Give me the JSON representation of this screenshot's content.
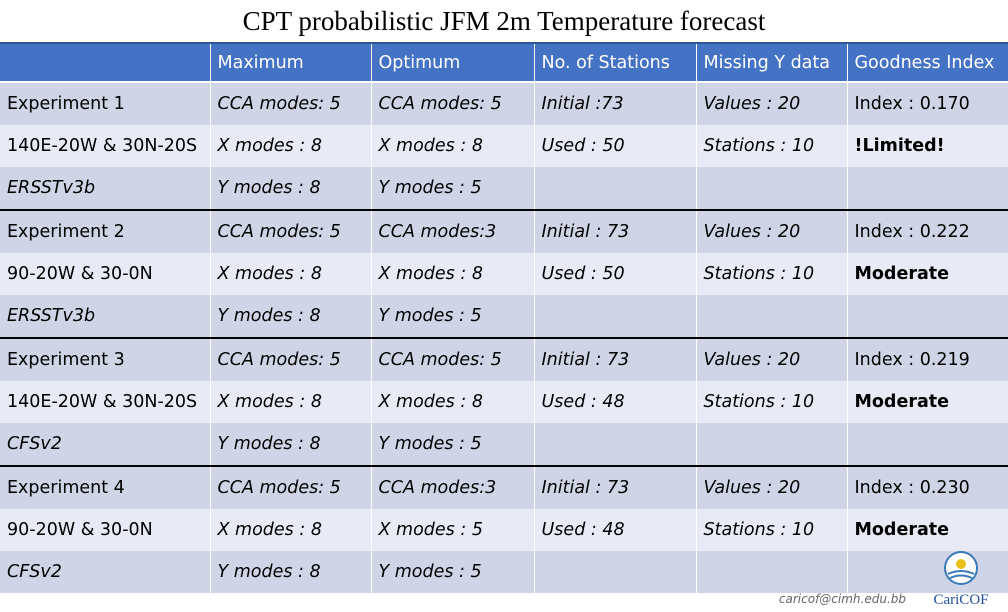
{
  "title": "CPT probabilistic JFM 2m Temperature forecast",
  "headers": [
    "",
    "Maximum",
    "Optimum",
    "No. of Stations",
    "Missing Y data",
    "Goodness Index"
  ],
  "experiments": [
    {
      "rows": [
        [
          "Experiment 1",
          "CCA modes: 5",
          "CCA modes: 5",
          "Initial :73",
          "Values : 20",
          "Index : 0.170"
        ],
        [
          "140E-20W & 30N-20S",
          "X modes : 8",
          "X modes : 8",
          "Used : 50",
          "Stations : 10",
          "!Limited!"
        ],
        [
          "ERSSTv3b",
          "Y modes : 8",
          "Y modes : 5",
          "",
          "",
          ""
        ]
      ]
    },
    {
      "rows": [
        [
          "Experiment 2",
          "CCA modes: 5",
          "CCA modes:3",
          "Initial : 73",
          "Values : 20",
          "Index : 0.222"
        ],
        [
          "90-20W & 30-0N",
          "X modes : 8",
          "X modes : 8",
          "Used : 50",
          "Stations : 10",
          "Moderate"
        ],
        [
          "ERSSTv3b",
          "Y modes : 8",
          "Y modes : 5",
          "",
          "",
          ""
        ]
      ]
    },
    {
      "rows": [
        [
          "Experiment 3",
          "CCA modes: 5",
          "CCA modes: 5",
          "Initial : 73",
          "Values : 20",
          "Index : 0.219"
        ],
        [
          "140E-20W & 30N-20S",
          "X modes : 8",
          "X modes : 8",
          "Used : 48",
          "Stations : 10",
          "Moderate"
        ],
        [
          "CFSv2",
          "Y modes : 8",
          "Y modes : 5",
          "",
          "",
          ""
        ]
      ]
    },
    {
      "rows": [
        [
          "Experiment 4",
          "CCA modes: 5",
          "CCA modes:3",
          "Initial : 73",
          "Values : 20",
          "Index : 0.230"
        ],
        [
          "90-20W & 30-0N",
          "X modes : 8",
          "X modes : 5",
          "Used : 48",
          "Stations : 10",
          "Moderate"
        ],
        [
          "CFSv2",
          "Y modes : 8",
          "Y modes : 5",
          "",
          "",
          ""
        ]
      ]
    }
  ],
  "footer_email": "caricof@cimh.edu.bb",
  "logo_text": "CariCOF",
  "colors": {
    "header": "#4472c4",
    "row_shade": "#cfd5e6",
    "row_plain": "#e8ebf5"
  }
}
